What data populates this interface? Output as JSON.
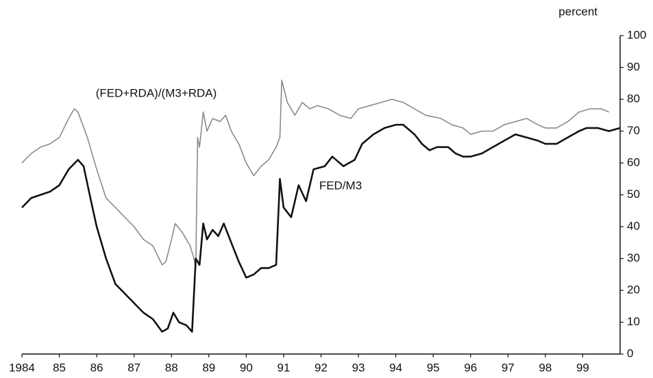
{
  "chart_data": {
    "type": "line",
    "y_label": "percent",
    "xlim": [
      1984,
      2000
    ],
    "xticks": [
      {
        "value": 1984,
        "label": "1984"
      },
      {
        "value": 1985,
        "label": "85"
      },
      {
        "value": 1986,
        "label": "86"
      },
      {
        "value": 1987,
        "label": "87"
      },
      {
        "value": 1988,
        "label": "88"
      },
      {
        "value": 1989,
        "label": "89"
      },
      {
        "value": 1990,
        "label": "90"
      },
      {
        "value": 1991,
        "label": "91"
      },
      {
        "value": 1992,
        "label": "92"
      },
      {
        "value": 1993,
        "label": "93"
      },
      {
        "value": 1994,
        "label": "94"
      },
      {
        "value": 1995,
        "label": "95"
      },
      {
        "value": 1996,
        "label": "96"
      },
      {
        "value": 1997,
        "label": "97"
      },
      {
        "value": 1998,
        "label": "98"
      },
      {
        "value": 1999,
        "label": "99"
      }
    ],
    "ylim": [
      0,
      100
    ],
    "yticks": [
      0,
      10,
      20,
      30,
      40,
      50,
      60,
      70,
      80,
      90,
      100
    ],
    "series": [
      {
        "name": "(FED+RDA)/(M3+RDA)",
        "color": "#8a8a8a",
        "x": [
          1984.0,
          1984.25,
          1984.5,
          1984.75,
          1985.0,
          1985.25,
          1985.4,
          1985.5,
          1985.75,
          1986.0,
          1986.25,
          1986.5,
          1986.75,
          1987.0,
          1987.25,
          1987.5,
          1987.75,
          1987.85,
          1988.0,
          1988.1,
          1988.3,
          1988.5,
          1988.6,
          1988.65,
          1988.7,
          1988.75,
          1988.85,
          1988.95,
          1989.1,
          1989.3,
          1989.45,
          1989.6,
          1989.8,
          1990.0,
          1990.2,
          1990.4,
          1990.6,
          1990.8,
          1990.9,
          1990.95,
          1991.1,
          1991.3,
          1991.5,
          1991.7,
          1991.9,
          1992.2,
          1992.5,
          1992.8,
          1993.0,
          1993.3,
          1993.6,
          1993.9,
          1994.2,
          1994.5,
          1994.8,
          1995.2,
          1995.5,
          1995.8,
          1996.0,
          1996.3,
          1996.6,
          1996.9,
          1997.2,
          1997.5,
          1997.8,
          1998.0,
          1998.3,
          1998.6,
          1998.9,
          1999.2,
          1999.5,
          1999.7
        ],
        "values": [
          60,
          63,
          65,
          66,
          68,
          74,
          77,
          76,
          68,
          58,
          49,
          46,
          43,
          40,
          36,
          34,
          28,
          29,
          36,
          41,
          38,
          34,
          30,
          27,
          68,
          65,
          76,
          70,
          74,
          73,
          75,
          70,
          66,
          60,
          56,
          59,
          61,
          65,
          68,
          86,
          79,
          75,
          79,
          77,
          78,
          77,
          75,
          74,
          77,
          78,
          79,
          80,
          79,
          77,
          75,
          74,
          72,
          71,
          69,
          70,
          70,
          72,
          73,
          74,
          72,
          71,
          71,
          73,
          76,
          77,
          77,
          76
        ]
      },
      {
        "name": "FED/M3",
        "color": "#111111",
        "x": [
          1984.0,
          1984.25,
          1984.5,
          1984.75,
          1985.0,
          1985.25,
          1985.5,
          1985.65,
          1985.85,
          1986.0,
          1986.25,
          1986.5,
          1986.75,
          1987.0,
          1987.25,
          1987.5,
          1987.75,
          1987.9,
          1988.05,
          1988.2,
          1988.4,
          1988.55,
          1988.65,
          1988.75,
          1988.85,
          1988.95,
          1989.1,
          1989.25,
          1989.4,
          1989.6,
          1989.8,
          1990.0,
          1990.2,
          1990.4,
          1990.6,
          1990.8,
          1990.9,
          1991.0,
          1991.2,
          1991.4,
          1991.6,
          1991.8,
          1992.1,
          1992.3,
          1992.6,
          1992.9,
          1993.1,
          1993.4,
          1993.7,
          1994.0,
          1994.2,
          1994.5,
          1994.7,
          1994.9,
          1995.1,
          1995.4,
          1995.6,
          1995.8,
          1996.0,
          1996.3,
          1996.6,
          1996.9,
          1997.2,
          1997.5,
          1997.8,
          1998.0,
          1998.3,
          1998.6,
          1998.9,
          1999.1,
          1999.4,
          1999.7,
          2000.0
        ],
        "values": [
          46,
          49,
          50,
          51,
          53,
          58,
          61,
          59,
          48,
          40,
          30,
          22,
          19,
          16,
          13,
          11,
          7,
          8,
          13,
          10,
          9,
          7,
          30,
          28,
          41,
          36,
          39,
          37,
          41,
          35,
          29,
          24,
          25,
          27,
          27,
          28,
          55,
          46,
          43,
          53,
          48,
          58,
          59,
          62,
          59,
          61,
          66,
          69,
          71,
          72,
          72,
          69,
          66,
          64,
          65,
          65,
          63,
          62,
          62,
          63,
          65,
          67,
          69,
          68,
          67,
          66,
          66,
          68,
          70,
          71,
          71,
          70,
          71
        ]
      }
    ]
  }
}
